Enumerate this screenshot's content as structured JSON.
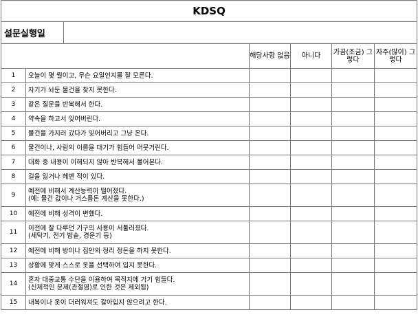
{
  "title": "KDSQ",
  "date_label": "설문실행일",
  "date_value": "",
  "columns": [
    "해당사항 없음",
    "아니다",
    "가끔(조금) 그렇다",
    "자주(많이) 그렇다"
  ],
  "questions": [
    {
      "num": "1",
      "lines": [
        "오늘이 몇 월이고, 무슨 요일인지를 잘 모른다."
      ]
    },
    {
      "num": "2",
      "lines": [
        "자기가 놔둔 물건을 찾지 못한다."
      ]
    },
    {
      "num": "3",
      "lines": [
        "같은 질문을 반복해서 한다."
      ]
    },
    {
      "num": "4",
      "lines": [
        "약속을 하고서 잊어버린다."
      ]
    },
    {
      "num": "5",
      "lines": [
        "물건을 가지러 갔다가 잊어버리고 그냥 온다."
      ]
    },
    {
      "num": "6",
      "lines": [
        "물건이나, 사람의 이름을 대기가 힘들어 머뭇거린다."
      ]
    },
    {
      "num": "7",
      "lines": [
        "대화 중 내용이 이해되지 않아 반복해서 물어본다."
      ]
    },
    {
      "num": "8",
      "lines": [
        "길을 잃거나 헤맨 적이 있다."
      ]
    },
    {
      "num": "9",
      "lines": [
        "예전에 비해서 계산능력이 떨어졌다.",
        "(예: 물건 값이나 거스름돈 계산을 못한다.)"
      ]
    },
    {
      "num": "10",
      "lines": [
        "예전에 비해 성격이 변했다."
      ]
    },
    {
      "num": "11",
      "lines": [
        "이전에 잘 다루던 기구의 사용이 서툴러졌다.",
        "(세탁기, 전기 밥솥, 경운기 등)"
      ]
    },
    {
      "num": "12",
      "lines": [
        "예전에 비해 방이나 집안의 정리 정돈을 하지 못한다."
      ]
    },
    {
      "num": "13",
      "lines": [
        "상황에 맞게 스스로 옷을 선택하여 입지 못한다."
      ]
    },
    {
      "num": "14",
      "lines": [
        "혼자 대중교통 수단을 이용하여 목적지에 가기 힘들다.",
        "(신체적인 문제(관절염)로 인한 것은 제외됨)"
      ]
    },
    {
      "num": "15",
      "lines": [
        "내복이나 옷이 더러워져도 갈아입지 않으려고 한다."
      ]
    }
  ]
}
